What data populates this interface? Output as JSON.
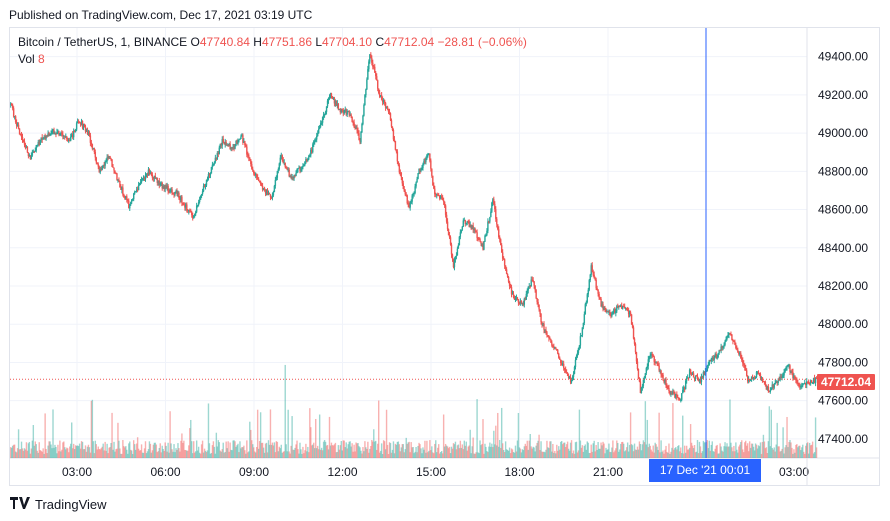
{
  "header": {
    "published": "Published on TradingView.com, Dec 17, 2021 03:19 UTC"
  },
  "legend": {
    "symbol": "Bitcoin / TetherUS, 1, BINANCE",
    "o_label": "O",
    "o": "47740.84",
    "h_label": "H",
    "h": "47751.86",
    "l_label": "L",
    "l": "47704.10",
    "c_label": "C",
    "c": "47712.04",
    "change": "−28.81 (−0.06%)",
    "vol_label": "Vol",
    "vol": "8"
  },
  "brand": {
    "name": "TradingView",
    "logo_icon": "tradingview-logo-icon"
  },
  "price_label": "47712.04",
  "crosshair_label": "17 Dec '21   00:01",
  "colors": {
    "up": "#26a69a",
    "down": "#ef5350",
    "crosshair": "#2962ff",
    "grid": "#f0f3fa"
  },
  "chart_data": {
    "type": "candlestick",
    "y_ticks": [
      "49400.00",
      "49200.00",
      "49000.00",
      "48800.00",
      "48600.00",
      "48400.00",
      "48200.00",
      "48000.00",
      "47800.00",
      "47600.00",
      "47400.00"
    ],
    "ylim": [
      47300,
      49550
    ],
    "x_ticks": [
      "03:00",
      "06:00",
      "09:00",
      "12:00",
      "15:00",
      "18:00",
      "21:00",
      "03:00"
    ],
    "last_price": 47712.04,
    "close_path": [
      {
        "t": "00:00",
        "v": 49150
      },
      {
        "t": "00:20",
        "v": 48980
      },
      {
        "t": "00:40",
        "v": 48870
      },
      {
        "t": "01:00",
        "v": 48960
      },
      {
        "t": "01:30",
        "v": 49010
      },
      {
        "t": "02:00",
        "v": 48960
      },
      {
        "t": "02:20",
        "v": 49070
      },
      {
        "t": "02:40",
        "v": 48980
      },
      {
        "t": "03:00",
        "v": 48800
      },
      {
        "t": "03:20",
        "v": 48880
      },
      {
        "t": "03:40",
        "v": 48740
      },
      {
        "t": "04:00",
        "v": 48620
      },
      {
        "t": "04:20",
        "v": 48720
      },
      {
        "t": "04:40",
        "v": 48800
      },
      {
        "t": "05:10",
        "v": 48720
      },
      {
        "t": "05:40",
        "v": 48680
      },
      {
        "t": "06:10",
        "v": 48560
      },
      {
        "t": "06:30",
        "v": 48700
      },
      {
        "t": "06:50",
        "v": 48820
      },
      {
        "t": "07:10",
        "v": 48960
      },
      {
        "t": "07:30",
        "v": 48920
      },
      {
        "t": "07:50",
        "v": 48980
      },
      {
        "t": "08:10",
        "v": 48820
      },
      {
        "t": "08:30",
        "v": 48720
      },
      {
        "t": "08:50",
        "v": 48660
      },
      {
        "t": "09:10",
        "v": 48880
      },
      {
        "t": "09:30",
        "v": 48760
      },
      {
        "t": "09:50",
        "v": 48820
      },
      {
        "t": "10:10",
        "v": 48900
      },
      {
        "t": "10:30",
        "v": 49050
      },
      {
        "t": "10:50",
        "v": 49200
      },
      {
        "t": "11:10",
        "v": 49120
      },
      {
        "t": "11:30",
        "v": 49100
      },
      {
        "t": "11:50",
        "v": 48960
      },
      {
        "t": "12:10",
        "v": 49420
      },
      {
        "t": "12:30",
        "v": 49200
      },
      {
        "t": "12:50",
        "v": 49100
      },
      {
        "t": "13:10",
        "v": 48800
      },
      {
        "t": "13:30",
        "v": 48600
      },
      {
        "t": "13:50",
        "v": 48800
      },
      {
        "t": "14:10",
        "v": 48900
      },
      {
        "t": "14:20",
        "v": 48700
      },
      {
        "t": "14:40",
        "v": 48650
      },
      {
        "t": "15:00",
        "v": 48300
      },
      {
        "t": "15:20",
        "v": 48550
      },
      {
        "t": "15:40",
        "v": 48500
      },
      {
        "t": "16:00",
        "v": 48400
      },
      {
        "t": "16:20",
        "v": 48650
      },
      {
        "t": "16:40",
        "v": 48350
      },
      {
        "t": "17:00",
        "v": 48150
      },
      {
        "t": "17:20",
        "v": 48100
      },
      {
        "t": "17:40",
        "v": 48240
      },
      {
        "t": "18:00",
        "v": 48000
      },
      {
        "t": "18:20",
        "v": 47900
      },
      {
        "t": "18:40",
        "v": 47800
      },
      {
        "t": "19:00",
        "v": 47700
      },
      {
        "t": "19:20",
        "v": 47950
      },
      {
        "t": "19:40",
        "v": 48300
      },
      {
        "t": "20:00",
        "v": 48100
      },
      {
        "t": "20:20",
        "v": 48050
      },
      {
        "t": "20:40",
        "v": 48100
      },
      {
        "t": "21:00",
        "v": 48050
      },
      {
        "t": "21:20",
        "v": 47650
      },
      {
        "t": "21:40",
        "v": 47850
      },
      {
        "t": "22:00",
        "v": 47750
      },
      {
        "t": "22:20",
        "v": 47650
      },
      {
        "t": "22:40",
        "v": 47600
      },
      {
        "t": "23:00",
        "v": 47750
      },
      {
        "t": "23:20",
        "v": 47700
      },
      {
        "t": "23:40",
        "v": 47800
      },
      {
        "t": "00:00",
        "v": 47850
      },
      {
        "t": "00:20",
        "v": 47950
      },
      {
        "t": "00:40",
        "v": 47850
      },
      {
        "t": "01:00",
        "v": 47700
      },
      {
        "t": "01:20",
        "v": 47750
      },
      {
        "t": "01:40",
        "v": 47650
      },
      {
        "t": "02:00",
        "v": 47700
      },
      {
        "t": "02:20",
        "v": 47780
      },
      {
        "t": "02:40",
        "v": 47680
      },
      {
        "t": "03:19",
        "v": 47712
      }
    ]
  }
}
